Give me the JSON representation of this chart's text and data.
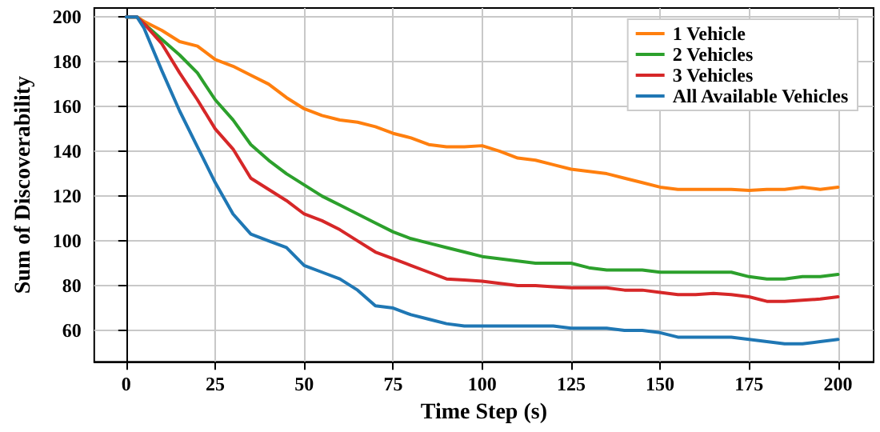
{
  "chart_data": {
    "type": "line",
    "xlabel": "Time Step (s)",
    "ylabel": "Sum of Discoverability",
    "x": [
      0,
      3,
      5,
      10,
      15,
      20,
      25,
      30,
      35,
      40,
      45,
      50,
      55,
      60,
      65,
      70,
      75,
      80,
      85,
      90,
      95,
      100,
      105,
      110,
      115,
      120,
      125,
      130,
      135,
      140,
      145,
      150,
      155,
      160,
      165,
      170,
      175,
      180,
      185,
      190,
      195,
      200
    ],
    "series": [
      {
        "name": "1 Vehicle",
        "color": "#ff7f0e",
        "values": [
          200,
          200,
          198,
          194,
          189,
          187,
          181,
          178,
          174,
          170,
          164,
          159,
          156,
          154,
          153,
          151,
          148,
          146,
          143,
          142,
          142,
          142.5,
          140,
          137,
          136,
          134,
          132,
          131,
          130,
          128,
          126,
          124,
          123,
          123,
          123,
          123,
          122.5,
          123,
          123,
          124,
          123,
          124
        ]
      },
      {
        "name": "2 Vehicles",
        "color": "#2ca02c",
        "values": [
          200,
          200,
          197,
          190,
          183,
          175,
          163,
          154,
          143,
          136,
          130,
          125,
          120,
          116,
          112,
          108,
          104,
          101,
          99,
          97,
          95,
          93,
          92,
          91,
          90,
          90,
          90,
          88,
          87,
          87,
          87,
          86,
          86,
          86,
          86,
          86,
          84,
          83,
          83,
          84,
          84,
          85
        ]
      },
      {
        "name": "3 Vehicles",
        "color": "#d62728",
        "values": [
          200,
          200,
          197,
          188,
          175,
          163,
          150,
          141,
          128,
          123,
          118,
          112,
          109,
          105,
          100,
          95,
          92,
          89,
          86,
          83,
          82.5,
          82,
          81,
          80,
          80,
          79.5,
          79,
          79,
          79,
          78,
          78,
          77,
          76,
          76,
          76.5,
          76,
          75,
          73,
          73,
          73.5,
          74,
          75
        ]
      },
      {
        "name": "All Available Vehicles",
        "color": "#1f77b4",
        "values": [
          200,
          200,
          195,
          176,
          158,
          142,
          126,
          112,
          103,
          100,
          97,
          89,
          86,
          83,
          78,
          71,
          70,
          67,
          65,
          63,
          62,
          62,
          62,
          62,
          62,
          62,
          61,
          61,
          61,
          60,
          60,
          59,
          57,
          57,
          57,
          57,
          56,
          55,
          54,
          54,
          55,
          56
        ]
      }
    ],
    "xlim": [
      -9,
      210
    ],
    "xticks": [
      0,
      25,
      50,
      75,
      100,
      125,
      150,
      175,
      200
    ],
    "ylim": [
      46,
      204
    ],
    "yticks": [
      60,
      80,
      100,
      120,
      140,
      160,
      180,
      200
    ],
    "grid": true,
    "legend": "top right",
    "marker": "none",
    "line_style": "solid"
  }
}
